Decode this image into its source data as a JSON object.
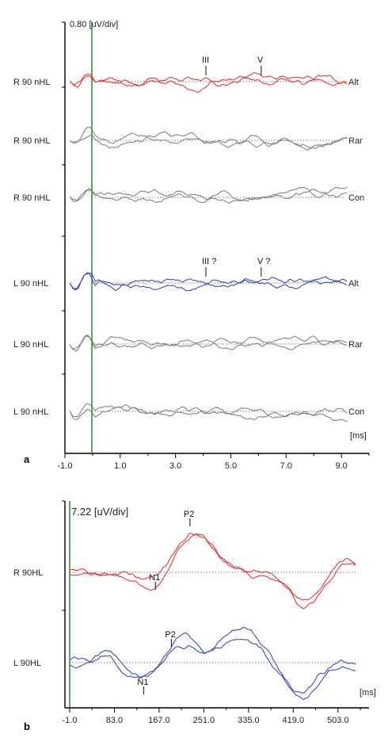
{
  "colors": {
    "red": "#e8252a",
    "blue": "#2f3ab8",
    "gray": "#7a7a7a",
    "axis": "#000000",
    "marker": "#2a8a2a",
    "baseline": "#333333"
  },
  "chart_data": [
    {
      "type": "line",
      "panel_label": "a",
      "scale_label": "0.80 [uV/div]",
      "xunit": "[ms]",
      "xlim": [
        -1.0,
        10.0
      ],
      "xticks": [
        "-1.0",
        "1.0",
        "3.0",
        "5.0",
        "7.0",
        "9.0"
      ],
      "marker_x": 0.0,
      "traces": [
        {
          "label": "R 90 nHL",
          "type": "Alt",
          "color": "red"
        },
        {
          "label": "R 90 nHL",
          "type": "Rar",
          "color": "gray"
        },
        {
          "label": "R 90 nHL",
          "type": "Con",
          "color": "gray"
        },
        {
          "label": "L 90 nHL",
          "type": "Alt",
          "color": "blue"
        },
        {
          "label": "L 90 nHL",
          "type": "Rar",
          "color": "gray"
        },
        {
          "label": "L 90 nHL",
          "type": "Con",
          "color": "gray"
        }
      ],
      "annotations": [
        {
          "trace": 0,
          "text": "III",
          "x": 4.1
        },
        {
          "trace": 0,
          "text": "V",
          "x": 6.1
        },
        {
          "trace": 3,
          "text": "III ?",
          "x": 4.1
        },
        {
          "trace": 3,
          "text": "V ?",
          "x": 6.1
        }
      ]
    },
    {
      "type": "line",
      "panel_label": "b",
      "scale_label": "7.22 [uV/div]",
      "xunit": "[ms]",
      "xlim": [
        -1.0,
        545.0
      ],
      "xticks": [
        "-1.0",
        "83.0",
        "167.0",
        "251.0",
        "335.0",
        "419.0",
        "503.0"
      ],
      "marker_x": -1.0,
      "traces": [
        {
          "label": "R 90HL",
          "color": "red"
        },
        {
          "label": "L  90HL",
          "color": "blue"
        }
      ],
      "annotations": [
        {
          "trace": 0,
          "text": "N1",
          "x": 160
        },
        {
          "trace": 0,
          "text": "P2",
          "x": 225
        },
        {
          "trace": 1,
          "text": "N1",
          "x": 138
        },
        {
          "trace": 1,
          "text": "P2",
          "x": 190
        }
      ]
    }
  ]
}
